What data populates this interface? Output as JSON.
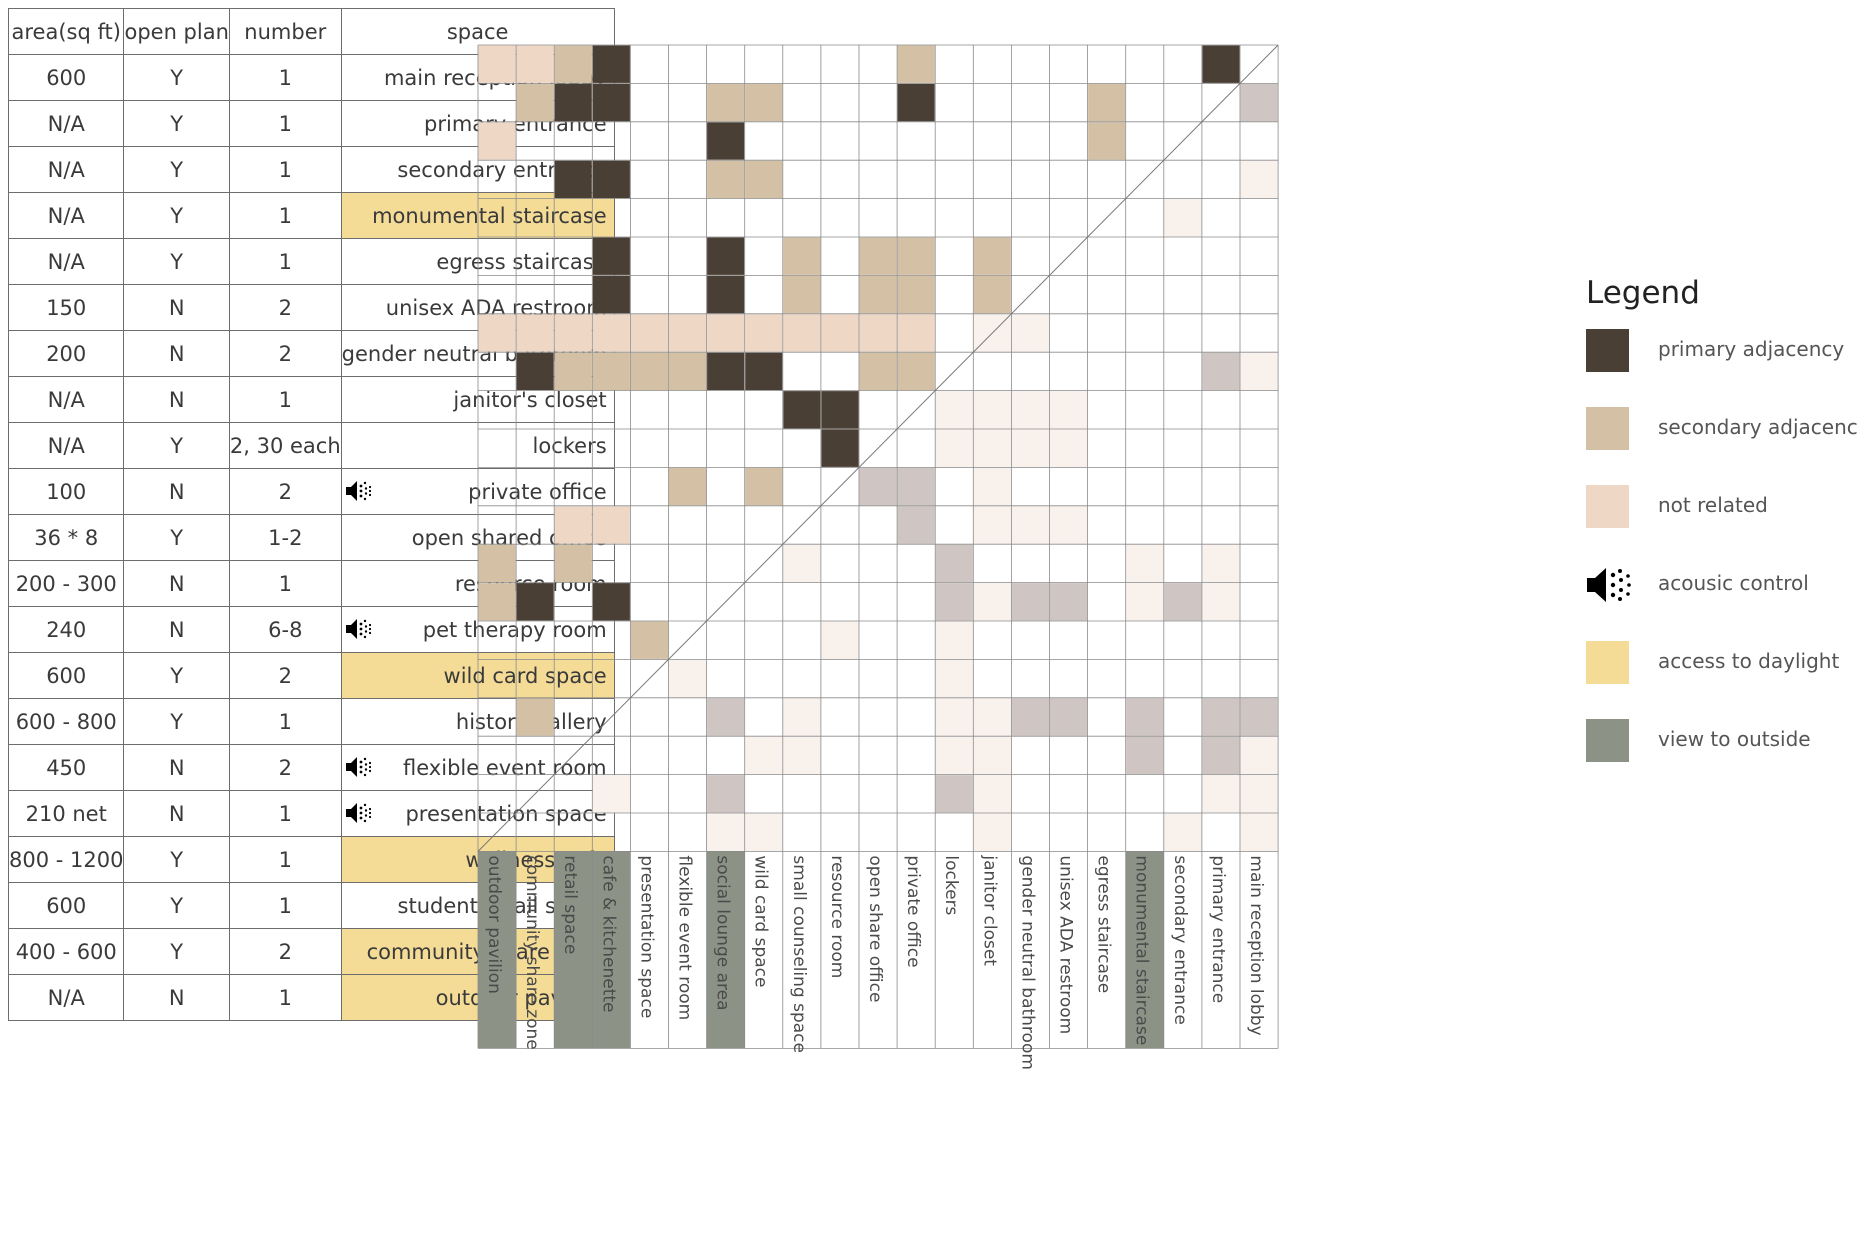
{
  "table": {
    "headers": {
      "area": "area(sq ft)",
      "open_plan": "open plan",
      "number": "number",
      "space": "space"
    },
    "rows": [
      {
        "area": "600",
        "open": "Y",
        "number": "1",
        "space": "main reception lobby",
        "daylight": false,
        "acoustic": false
      },
      {
        "area": "N/A",
        "open": "Y",
        "number": "1",
        "space": "primary entrance",
        "daylight": false,
        "acoustic": false
      },
      {
        "area": "N/A",
        "open": "Y",
        "number": "1",
        "space": "secondary entrance",
        "daylight": false,
        "acoustic": false
      },
      {
        "area": "N/A",
        "open": "Y",
        "number": "1",
        "space": "monumental staircase",
        "daylight": true,
        "acoustic": false
      },
      {
        "area": "N/A",
        "open": "Y",
        "number": "1",
        "space": "egress staircase",
        "daylight": false,
        "acoustic": false
      },
      {
        "area": "150",
        "open": "N",
        "number": "2",
        "space": "unisex ADA restroom",
        "daylight": false,
        "acoustic": false
      },
      {
        "area": "200",
        "open": "N",
        "number": "2",
        "space": "gender neutral bathroom",
        "daylight": false,
        "acoustic": false
      },
      {
        "area": "N/A",
        "open": "N",
        "number": "1",
        "space": "janitor's closet",
        "daylight": false,
        "acoustic": false
      },
      {
        "area": "N/A",
        "open": "Y",
        "number": "2, 30 each",
        "space": "lockers",
        "daylight": false,
        "acoustic": false
      },
      {
        "area": "100",
        "open": "N",
        "number": "2",
        "space": "private office",
        "daylight": false,
        "acoustic": true
      },
      {
        "area": "36 * 8",
        "open": "Y",
        "number": "1-2",
        "space": "open shared office",
        "daylight": false,
        "acoustic": false
      },
      {
        "area": "200 - 300",
        "open": "N",
        "number": "1",
        "space": "resource room",
        "daylight": false,
        "acoustic": false
      },
      {
        "area": "240",
        "open": "N",
        "number": "6-8",
        "space": "pet therapy room",
        "daylight": false,
        "acoustic": true
      },
      {
        "area": "600",
        "open": "Y",
        "number": "2",
        "space": "wild card space",
        "daylight": true,
        "acoustic": false
      },
      {
        "area": "600 - 800",
        "open": "Y",
        "number": "1",
        "space": "history gallery",
        "daylight": false,
        "acoustic": false
      },
      {
        "area": "450",
        "open": "N",
        "number": "2",
        "space": "flexible event room",
        "daylight": false,
        "acoustic": true
      },
      {
        "area": "210 net",
        "open": "N",
        "number": "1",
        "space": "presentation space",
        "daylight": false,
        "acoustic": true
      },
      {
        "area": "800 - 1200",
        "open": "Y",
        "number": "1",
        "space": "wellness cafe",
        "daylight": true,
        "acoustic": false
      },
      {
        "area": "600",
        "open": "Y",
        "number": "1",
        "space": "student retail space",
        "daylight": false,
        "acoustic": false
      },
      {
        "area": "400 - 600",
        "open": "Y",
        "number": "2",
        "space": "community share zone",
        "daylight": true,
        "acoustic": false
      },
      {
        "area": "N/A",
        "open": "N",
        "number": "1",
        "space": "outdoor pavilion",
        "daylight": true,
        "acoustic": false
      }
    ]
  },
  "matrix": {
    "columns": [
      {
        "label": "outdoor pavilion",
        "view": true
      },
      {
        "label": "community share zone",
        "view": false
      },
      {
        "label": "retail space",
        "view": true
      },
      {
        "label": "cafe & kitchenette",
        "view": true
      },
      {
        "label": "presentation space",
        "view": false
      },
      {
        "label": "flexible event room",
        "view": false
      },
      {
        "label": "social lounge area",
        "view": true
      },
      {
        "label": "wild card space",
        "view": false
      },
      {
        "label": "small counseling space",
        "view": false
      },
      {
        "label": "resource room",
        "view": false
      },
      {
        "label": "open share office",
        "view": false
      },
      {
        "label": "private office",
        "view": false
      },
      {
        "label": "lockers",
        "view": false
      },
      {
        "label": "janitor closet",
        "view": false
      },
      {
        "label": "gender neutral bathroom",
        "view": false
      },
      {
        "label": "unisex ADA restroom",
        "view": false
      },
      {
        "label": "egress staircase",
        "view": false
      },
      {
        "label": "monumental staircase",
        "view": true
      },
      {
        "label": "secondary entrance",
        "view": false
      },
      {
        "label": "primary entrance",
        "view": false
      },
      {
        "label": "main reception lobby",
        "view": false
      }
    ],
    "cell_codes": "P = primary adjacency, S = secondary adjacency, N = not related, G = grey (lower triangle), L = faint (lower triangle), . = empty",
    "rows": [
      "NNSP.......S.......P.",
      ".SPP..SS...P....S...G",
      "N.....P.........S....",
      "..PP..SS............L",
      "..................L..",
      "...P..P.S.SS.S.......",
      "...P..P.S.SS.S.......",
      "NNNNNNNNNNNN.LL......",
      ".PSSSSPP..SS.......GL",
      "........PP..LLLL.....",
      ".........P..LLLL.....",
      ".....S.S..GG.L.......",
      "..NN.......G.LLL.....",
      "S.S.....L...G....L.L.",
      "SP.P........GLGG.LGL.",
      "....S....L..L........",
      ".....L......L........",
      ".S....G.L...LLGG.G.GG",
      ".......LL...LL...G.GL",
      "...L..G.....GL.....LL",
      "......LL.....L....L.L"
    ]
  },
  "legend": {
    "title": "Legend",
    "items": [
      {
        "key": "primary",
        "label": "primary adjacency",
        "color": "#4a3f35"
      },
      {
        "key": "secondary",
        "label": "secondary adjacency",
        "color": "#d4c1a5"
      },
      {
        "key": "not_related",
        "label": "not related",
        "color": "#efd7c6"
      },
      {
        "key": "acoustic",
        "label": "acousic control",
        "color": "#000000"
      },
      {
        "key": "daylight",
        "label": "access to daylight",
        "color": "#f4dc97"
      },
      {
        "key": "view",
        "label": "view to outside",
        "color": "#8d9287"
      }
    ]
  },
  "colors": {
    "P": "#4a3f35",
    "S": "#d4c1a5",
    "N": "#efd7c6",
    "G": "#cfc6c3",
    "L": "#f8f1ec",
    "view": "#8d9287",
    "grid": "#8a8a8a"
  }
}
